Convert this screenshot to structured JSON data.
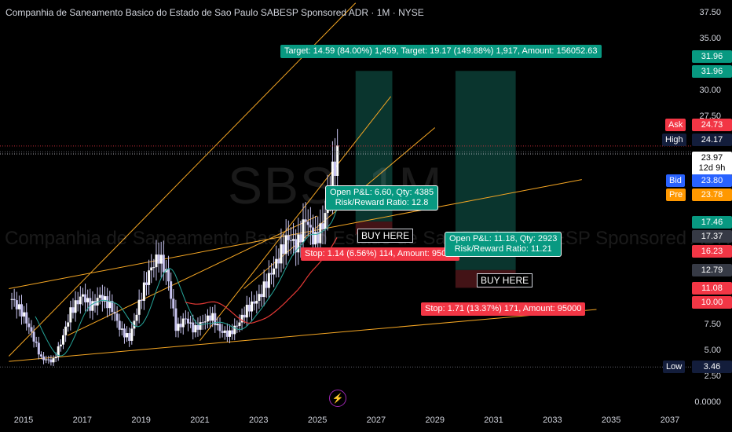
{
  "header": {
    "title": "Companhia de Saneamento Basico do Estado de Sao Paulo SABESP Sponsored ADR · 1M · NYSE"
  },
  "watermark": {
    "symbol": "SBS, 1M",
    "name": "Companhia de Saneamento Basico do Estado de Sao Paulo SABESP Sponsored ADR"
  },
  "chart_data": {
    "type": "candlestick",
    "symbol": "SBS",
    "interval": "1M",
    "exchange": "NYSE",
    "x_range": [
      2014.5,
      2038.0
    ],
    "y_range": [
      0,
      38
    ],
    "x_ticks": [
      "2015",
      "2017",
      "2019",
      "2021",
      "2023",
      "2025",
      "2027",
      "2029",
      "2031",
      "2033",
      "2035",
      "2037"
    ],
    "y_ticks": [
      "37.50",
      "35.00",
      "30.00",
      "27.50",
      "7.50",
      "5.00",
      "2.50",
      "0.0000"
    ],
    "price_series_x": [
      2014.6,
      2015.0,
      2015.3,
      2015.6,
      2016.0,
      2016.3,
      2016.6,
      2017.0,
      2017.3,
      2017.6,
      2018.0,
      2018.3,
      2018.6,
      2019.0,
      2019.3,
      2019.6,
      2019.9,
      2020.2,
      2020.5,
      2020.8,
      2021.1,
      2021.4,
      2021.7,
      2022.0,
      2022.3,
      2022.6,
      2023.0,
      2023.3,
      2023.6,
      2024.0,
      2024.3,
      2024.6,
      2024.9,
      2025.2,
      2025.5,
      2025.7
    ],
    "price_series_y": [
      10.0,
      8.5,
      6.5,
      4.3,
      4.0,
      6.0,
      8.8,
      10.4,
      9.2,
      10.3,
      9.2,
      7.0,
      6.2,
      10.2,
      12.8,
      14.1,
      12.3,
      7.0,
      8.2,
      7.0,
      7.8,
      8.4,
      6.9,
      6.6,
      7.6,
      9.0,
      10.1,
      11.8,
      13.5,
      16.0,
      15.0,
      17.8,
      15.5,
      17.2,
      22.0,
      23.97
    ],
    "levels": {
      "ask": "24.73",
      "high": "24.17",
      "last": "23.97",
      "countdown": "12d 9h",
      "bid": "23.80",
      "pre": "23.78",
      "target_top_1": "31.96",
      "target_top_2": "31.96",
      "green_1": "17.46",
      "grey_1": "17.37",
      "red_1": "16.23",
      "grey_2": "12.79",
      "red_2": "11.08",
      "red_3": "10.00",
      "low": "3.46"
    },
    "level_names": {
      "ask": "Ask",
      "high": "High",
      "bid": "Bid",
      "pre": "Pre",
      "low": "Low"
    },
    "annotations": {
      "target": "Target: 14.59 (84.00%) 1,459, Target: 19.17 (149.88%) 1,917, Amount: 156052.63",
      "pnl_1": "Open P&L: 6.60, Qty: 4385",
      "rr_1": "Risk/Reward Ratio: 12.8",
      "pnl_2": "Open P&L: 11.18, Qty: 2923",
      "rr_2": "Risk/Reward Ratio: 11.21",
      "buy_1": "BUY HERE",
      "buy_2": "BUY HERE",
      "stop_1": "Stop: 1.14 (6.56%) 114, Amount: 95000",
      "stop_2": "Stop: 1.71 (13.37%) 171, Amount: 95000"
    }
  },
  "colors": {
    "background": "#000000",
    "candle": "#c8c4f0",
    "channel": "#f5a623",
    "ma_fast": "#26a69a",
    "ma_slow": "#e53935",
    "profit_zone": "#0b3b33",
    "loss_zone": "#4a1518",
    "green_badge": "#089981",
    "red_badge": "#f23645",
    "navy_badge": "#131d3b",
    "grey_badge": "#363a45",
    "bid_badge": "#2962ff",
    "pre_badge": "#ff9800"
  },
  "icons": {
    "bolt": "lightning-bolt-icon"
  }
}
